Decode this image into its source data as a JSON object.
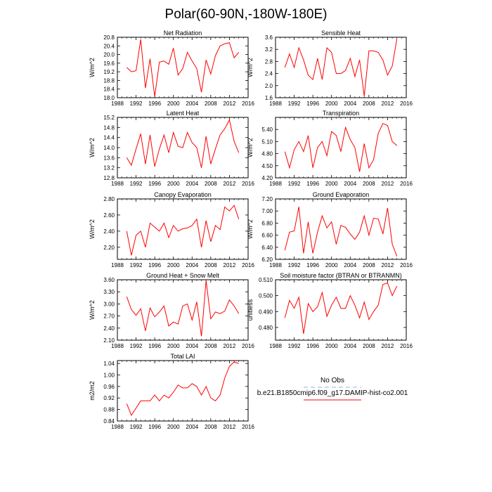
{
  "title": "Polar(60-90N,-180W-180E)",
  "legend": {
    "obs_label": "No Obs",
    "obs_color": "#aaaadd",
    "model_label": "b.e21.B1850cmip6.f09_g17.DAMIP-hist-co2.001",
    "model_color": "#ff0000"
  },
  "chart_data": [
    {
      "type": "line",
      "title": "Net Radiation",
      "ylabel": "W/m^2",
      "xlim": [
        1988,
        2016
      ],
      "xticks": [
        1988,
        1992,
        1996,
        2000,
        2004,
        2008,
        2012,
        2016
      ],
      "ylim": [
        18.0,
        20.8
      ],
      "yticks": [
        "18.0",
        "18.4",
        "18.8",
        "19.2",
        "19.6",
        "20.0",
        "20.4",
        "20.8"
      ],
      "series": [
        {
          "color": "#ff0000",
          "x": [
            1990,
            1991,
            1992,
            1993,
            1994,
            1995,
            1996,
            1997,
            1998,
            1999,
            2000,
            2001,
            2002,
            2003,
            2004,
            2005,
            2006,
            2007,
            2008,
            2009,
            2010,
            2011,
            2012,
            2013,
            2014
          ],
          "y": [
            19.4,
            19.2,
            19.25,
            20.7,
            18.45,
            19.8,
            18.05,
            19.65,
            19.7,
            19.55,
            20.3,
            19.05,
            19.35,
            20.1,
            19.7,
            19.35,
            18.25,
            19.75,
            19.1,
            19.95,
            20.4,
            20.5,
            20.55,
            19.85,
            20.1
          ]
        }
      ]
    },
    {
      "type": "line",
      "title": "Sensible Heat",
      "ylabel": "W/m^2",
      "xlim": [
        1988,
        2016
      ],
      "xticks": [
        1988,
        1992,
        1996,
        2000,
        2004,
        2008,
        2012,
        2016
      ],
      "ylim": [
        1.6,
        3.6
      ],
      "yticks": [
        "1.6",
        "2.0",
        "2.4",
        "2.8",
        "3.2",
        "3.6"
      ],
      "series": [
        {
          "color": "#ff0000",
          "x": [
            1990,
            1991,
            1992,
            1993,
            1994,
            1995,
            1996,
            1997,
            1998,
            1999,
            2000,
            2001,
            2002,
            2003,
            2004,
            2005,
            2006,
            2007,
            2008,
            2009,
            2010,
            2011,
            2012,
            2013,
            2014
          ],
          "y": [
            2.6,
            3.05,
            2.6,
            3.25,
            2.85,
            2.35,
            2.2,
            2.9,
            2.2,
            3.25,
            3.1,
            2.4,
            2.4,
            2.5,
            2.9,
            2.3,
            2.85,
            1.65,
            3.15,
            3.15,
            3.1,
            2.85,
            2.35,
            2.65,
            3.55
          ]
        }
      ]
    },
    {
      "type": "line",
      "title": "Latent Heat",
      "ylabel": "W/m^2",
      "xlim": [
        1988,
        2016
      ],
      "xticks": [
        1988,
        1992,
        1996,
        2000,
        2004,
        2008,
        2012,
        2016
      ],
      "ylim": [
        12.8,
        15.2
      ],
      "yticks": [
        "12.8",
        "13.2",
        "13.6",
        "14.0",
        "14.4",
        "14.8",
        "15.2"
      ],
      "series": [
        {
          "color": "#ff0000",
          "x": [
            1990,
            1991,
            1992,
            1993,
            1994,
            1995,
            1996,
            1997,
            1998,
            1999,
            2000,
            2001,
            2002,
            2003,
            2004,
            2005,
            2006,
            2007,
            2008,
            2009,
            2010,
            2011,
            2012,
            2013,
            2014
          ],
          "y": [
            13.6,
            13.3,
            13.95,
            14.55,
            13.35,
            14.5,
            13.25,
            13.95,
            14.5,
            13.8,
            14.6,
            14.05,
            14.0,
            14.6,
            14.2,
            14.0,
            13.2,
            14.45,
            13.35,
            13.95,
            14.5,
            14.75,
            15.1,
            14.25,
            13.8
          ]
        }
      ]
    },
    {
      "type": "line",
      "title": "Transpiration",
      "ylabel": "W/m^2",
      "xlim": [
        1988,
        2016
      ],
      "xticks": [
        1988,
        1992,
        1996,
        2000,
        2004,
        2008,
        2012,
        2016
      ],
      "ylim": [
        4.2,
        5.7
      ],
      "yticks": [
        "4.20",
        "4.50",
        "4.80",
        "5.10",
        "5.40"
      ],
      "series": [
        {
          "color": "#ff0000",
          "x": [
            1990,
            1991,
            1992,
            1993,
            1994,
            1995,
            1996,
            1997,
            1998,
            1999,
            2000,
            2001,
            2002,
            2003,
            2004,
            2005,
            2006,
            2007,
            2008,
            2009,
            2010,
            2011,
            2012,
            2013,
            2014
          ],
          "y": [
            4.85,
            4.45,
            4.9,
            5.1,
            4.85,
            5.25,
            4.45,
            4.95,
            5.1,
            4.75,
            5.35,
            5.25,
            4.85,
            5.45,
            5.15,
            4.95,
            4.35,
            5.05,
            4.45,
            4.65,
            5.3,
            5.55,
            5.5,
            5.1,
            5.0
          ]
        }
      ]
    },
    {
      "type": "line",
      "title": "Canopy Evaporation",
      "ylabel": "W/m^2",
      "xlim": [
        1988,
        2016
      ],
      "xticks": [
        1988,
        1992,
        1996,
        2000,
        2004,
        2008,
        2012,
        2016
      ],
      "ylim": [
        2.05,
        2.8
      ],
      "yticks": [
        "2.20",
        "2.40",
        "2.60",
        "2.80"
      ],
      "series": [
        {
          "color": "#ff0000",
          "x": [
            1990,
            1991,
            1992,
            1993,
            1994,
            1995,
            1996,
            1997,
            1998,
            1999,
            2000,
            2001,
            2002,
            2003,
            2004,
            2005,
            2006,
            2007,
            2008,
            2009,
            2010,
            2011,
            2012,
            2013,
            2014
          ],
          "y": [
            2.4,
            2.1,
            2.35,
            2.4,
            2.2,
            2.5,
            2.45,
            2.4,
            2.5,
            2.32,
            2.47,
            2.4,
            2.43,
            2.44,
            2.47,
            2.55,
            2.2,
            2.53,
            2.27,
            2.47,
            2.42,
            2.7,
            2.65,
            2.72,
            2.55
          ]
        }
      ]
    },
    {
      "type": "line",
      "title": "Ground Evaporation",
      "ylabel": "W/m^2",
      "xlim": [
        1988,
        2016
      ],
      "xticks": [
        1988,
        1992,
        1996,
        2000,
        2004,
        2008,
        2012,
        2016
      ],
      "ylim": [
        6.2,
        7.2
      ],
      "yticks": [
        "6.20",
        "6.40",
        "6.60",
        "6.80",
        "7.00",
        "7.20"
      ],
      "series": [
        {
          "color": "#ff0000",
          "x": [
            1990,
            1991,
            1992,
            1993,
            1994,
            1995,
            1996,
            1997,
            1998,
            1999,
            2000,
            2001,
            2002,
            2003,
            2004,
            2005,
            2006,
            2007,
            2008,
            2009,
            2010,
            2011,
            2012,
            2013,
            2014
          ],
          "y": [
            6.35,
            6.65,
            6.67,
            7.07,
            6.3,
            6.82,
            6.3,
            6.65,
            6.92,
            6.72,
            6.82,
            6.45,
            6.76,
            6.73,
            6.62,
            6.53,
            6.65,
            6.92,
            6.6,
            6.88,
            6.87,
            6.62,
            7.05,
            6.45,
            6.25
          ]
        }
      ]
    },
    {
      "type": "line",
      "title": "Ground Heat + Snow Melt",
      "ylabel": "W/m^2",
      "xlim": [
        1988,
        2016
      ],
      "xticks": [
        1988,
        1992,
        1996,
        2000,
        2004,
        2008,
        2012,
        2016
      ],
      "ylim": [
        2.1,
        3.6
      ],
      "yticks": [
        "2.10",
        "2.40",
        "2.70",
        "3.00",
        "3.30",
        "3.60"
      ],
      "series": [
        {
          "color": "#ff0000",
          "x": [
            1990,
            1991,
            1992,
            1993,
            1994,
            1995,
            1996,
            1997,
            1998,
            1999,
            2000,
            2001,
            2002,
            2003,
            2004,
            2005,
            2006,
            2007,
            2008,
            2009,
            2010,
            2011,
            2012,
            2013,
            2014
          ],
          "y": [
            3.18,
            2.86,
            2.72,
            2.88,
            2.33,
            2.9,
            2.68,
            2.8,
            2.95,
            2.45,
            2.55,
            2.5,
            2.95,
            3.0,
            2.6,
            3.05,
            2.2,
            3.58,
            2.63,
            2.8,
            2.76,
            2.82,
            3.1,
            2.95,
            2.76
          ]
        }
      ]
    },
    {
      "type": "line",
      "title": "Soil moisture factor (BTRAN or BTRANMN)",
      "ylabel": "unitless",
      "xlim": [
        1988,
        2016
      ],
      "xticks": [
        1988,
        1992,
        1996,
        2000,
        2004,
        2008,
        2012,
        2016
      ],
      "ylim": [
        0.472,
        0.51
      ],
      "yticks": [
        "0.480",
        "0.490",
        "0.500",
        "0.510"
      ],
      "series": [
        {
          "color": "#ff0000",
          "x": [
            1990,
            1991,
            1992,
            1993,
            1994,
            1995,
            1996,
            1997,
            1998,
            1999,
            2000,
            2001,
            2002,
            2003,
            2004,
            2005,
            2006,
            2007,
            2008,
            2009,
            2010,
            2011,
            2012,
            2013,
            2014
          ],
          "y": [
            0.486,
            0.497,
            0.492,
            0.499,
            0.476,
            0.495,
            0.49,
            0.493,
            0.502,
            0.487,
            0.494,
            0.499,
            0.492,
            0.492,
            0.5,
            0.494,
            0.486,
            0.496,
            0.485,
            0.49,
            0.494,
            0.507,
            0.508,
            0.5,
            0.506
          ]
        }
      ]
    },
    {
      "type": "line",
      "title": "Total LAI",
      "ylabel": "m2/m2",
      "xlim": [
        1988,
        2016
      ],
      "xticks": [
        1988,
        1992,
        1996,
        2000,
        2004,
        2008,
        2012,
        2016
      ],
      "ylim": [
        0.84,
        1.05
      ],
      "yticks": [
        "0.84",
        "0.88",
        "0.92",
        "0.96",
        "1.00",
        "1.04"
      ],
      "series": [
        {
          "color": "#ff0000",
          "x": [
            1990,
            1991,
            1992,
            1993,
            1994,
            1995,
            1996,
            1997,
            1998,
            1999,
            2000,
            2001,
            2002,
            2003,
            2004,
            2005,
            2006,
            2007,
            2008,
            2009,
            2010,
            2011,
            2012,
            2013,
            2014
          ],
          "y": [
            0.9,
            0.86,
            0.885,
            0.91,
            0.91,
            0.91,
            0.93,
            0.91,
            0.93,
            0.92,
            0.94,
            0.965,
            0.955,
            0.955,
            0.97,
            0.96,
            0.93,
            0.96,
            0.92,
            0.91,
            0.93,
            0.99,
            1.03,
            1.045,
            1.04
          ]
        }
      ]
    }
  ]
}
